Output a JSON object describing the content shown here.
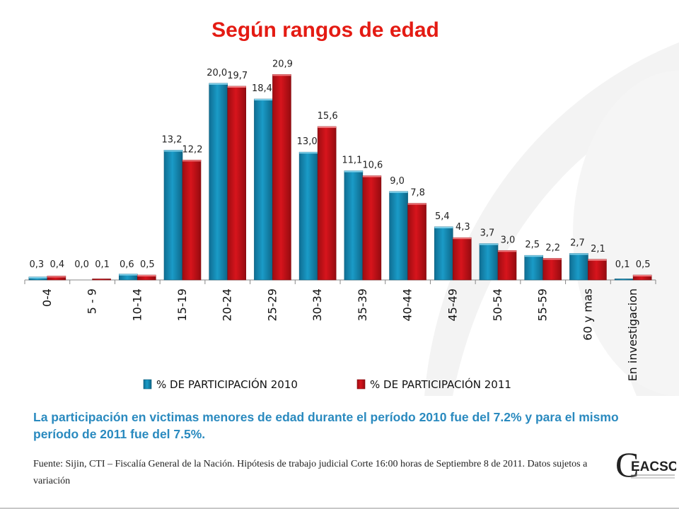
{
  "title": "Según rangos de edad",
  "summary": "La participación en victimas menores de edad durante el período 2010 fue del 7.2% y para el mismo período de 2011 fue del 7.5%.",
  "source": "Fuente: Sijin,  CTI – Fiscalía General de la Nación.  Hipótesis de trabajo judicial  Corte 16:00 horas de  Septiembre 8 de  2011.  Datos sujetos a variación",
  "logo": {
    "text": "EACSC",
    "letter": "C"
  },
  "colors": {
    "title": "#e41b13",
    "series2010": "#1a9bc7",
    "series2011": "#d7141c",
    "summary": "#2a8abf"
  },
  "chart_data": {
    "type": "bar",
    "categories": [
      "0-4",
      "5 - 9",
      "10-14",
      "15-19",
      "20-24",
      "25-29",
      "30-34",
      "35-39",
      "40-44",
      "45-49",
      "50-54",
      "55-59",
      "60 y mas",
      "En investigacion"
    ],
    "series": [
      {
        "name": "% DE PARTICIPACIÓN 2010",
        "values": [
          0.3,
          0.0,
          0.6,
          13.2,
          20.0,
          18.4,
          13.0,
          11.1,
          9.0,
          5.4,
          3.7,
          2.5,
          2.7,
          0.1
        ],
        "labels": [
          "0,3",
          "0,0",
          "0,6",
          "13,2",
          "20,0",
          "18,4",
          "13,0",
          "11,1",
          "9,0",
          "5,4",
          "3,7",
          "2,5",
          "2,7",
          "0,1"
        ]
      },
      {
        "name": "% DE PARTICIPACIÓN 2011",
        "values": [
          0.4,
          0.1,
          0.5,
          12.2,
          19.7,
          20.9,
          15.6,
          10.6,
          7.8,
          4.3,
          3.0,
          2.2,
          2.1,
          0.5
        ],
        "labels": [
          "0,4",
          "0,1",
          "0,5",
          "12,2",
          "19,7",
          "20,9",
          "15,6",
          "10,6",
          "7,8",
          "4,3",
          "3,0",
          "2,2",
          "2,1",
          "0,5"
        ]
      }
    ],
    "ylim": [
      0,
      22
    ],
    "grid": false,
    "legend": "bottom"
  }
}
